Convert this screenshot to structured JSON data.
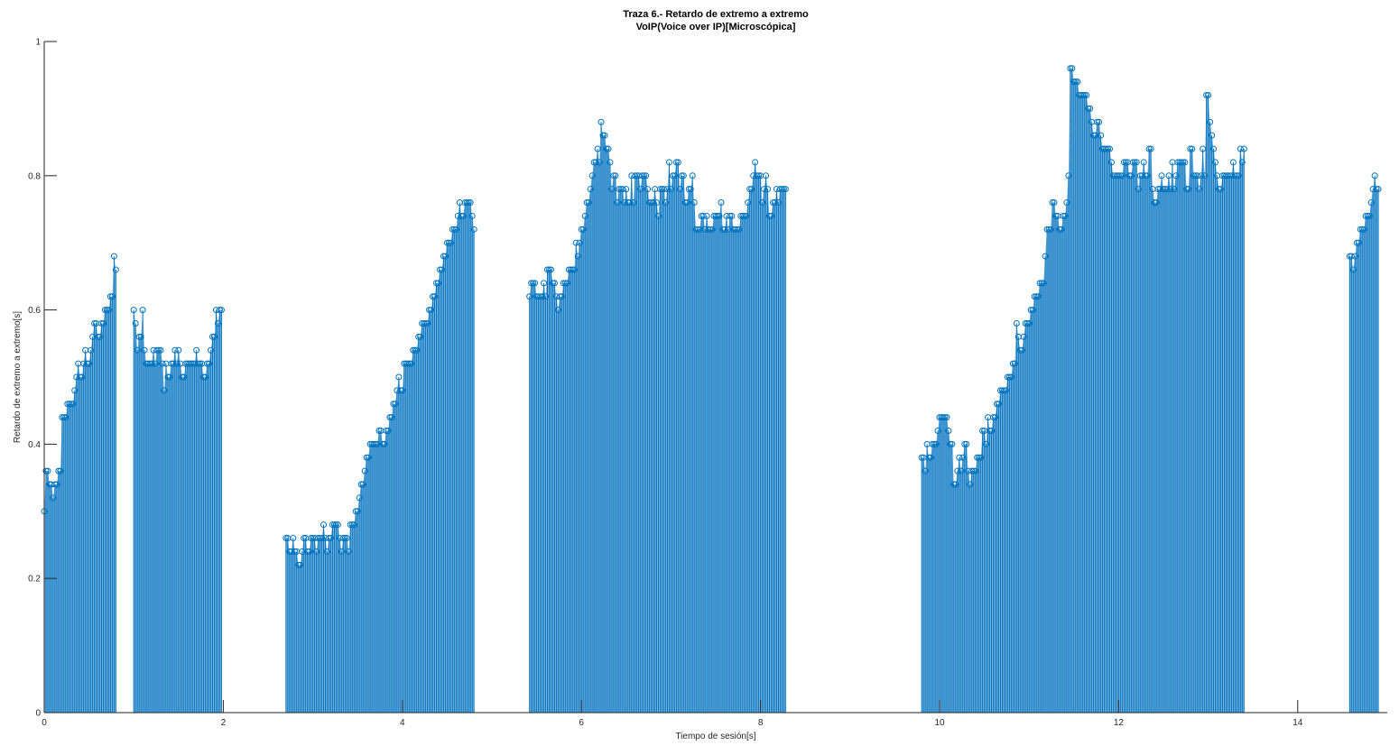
{
  "chart_data": {
    "type": "stem",
    "title": "Traza 6.- Retardo de extremo a extremo",
    "subtitle": "VoIP(Voice over IP)[Microscópica]",
    "xlabel": "Tiempo de sesión[s]",
    "ylabel": "Retardo de extremo a extremo[s]",
    "xlim": [
      0,
      15
    ],
    "ylim": [
      0,
      1
    ],
    "xticks": [
      0,
      2,
      4,
      6,
      8,
      10,
      12,
      14
    ],
    "yticks": [
      0,
      0.2,
      0.4,
      0.6,
      0.8,
      1
    ],
    "grid": false,
    "colors": {
      "stem": "#0072bd",
      "fill": "#7eb7e2"
    },
    "segments": [
      {
        "start": 0.0,
        "step": 0.02,
        "values": [
          0.3,
          0.36,
          0.36,
          0.34,
          0.34,
          0.32,
          0.34,
          0.34,
          0.36,
          0.36,
          0.44,
          0.44,
          0.44,
          0.46,
          0.46,
          0.46,
          0.46,
          0.48,
          0.5,
          0.52,
          0.5,
          0.5,
          0.52,
          0.54,
          0.52,
          0.52,
          0.54,
          0.56,
          0.58,
          0.58,
          0.56,
          0.56,
          0.58,
          0.58,
          0.6,
          0.6,
          0.6,
          0.62,
          0.62,
          0.68,
          0.66
        ]
      },
      {
        "start": 1.0,
        "step": 0.02,
        "values": [
          0.6,
          0.58,
          0.54,
          0.56,
          0.56,
          0.6,
          0.54,
          0.52,
          0.52,
          0.52,
          0.52,
          0.54,
          0.52,
          0.54,
          0.54,
          0.54,
          0.52,
          0.48,
          0.52,
          0.5,
          0.5,
          0.52,
          0.52,
          0.54,
          0.52,
          0.54,
          0.52,
          0.5,
          0.5,
          0.52,
          0.52,
          0.52,
          0.52,
          0.52,
          0.52,
          0.54,
          0.52,
          0.52,
          0.52,
          0.5,
          0.5,
          0.52,
          0.52,
          0.54,
          0.56,
          0.56,
          0.6,
          0.58,
          0.6,
          0.6
        ]
      },
      {
        "start": 2.7,
        "step": 0.02,
        "values": [
          0.26,
          0.26,
          0.24,
          0.24,
          0.26,
          0.24,
          0.24,
          0.22,
          0.22,
          0.24,
          0.26,
          0.26,
          0.24,
          0.24,
          0.26,
          0.26,
          0.26,
          0.24,
          0.26,
          0.26,
          0.26,
          0.28,
          0.26,
          0.24,
          0.26,
          0.26,
          0.28,
          0.28,
          0.28,
          0.28,
          0.26,
          0.24,
          0.26,
          0.26,
          0.26,
          0.24,
          0.28,
          0.28,
          0.28,
          0.3,
          0.3,
          0.32,
          0.34,
          0.34,
          0.36,
          0.38,
          0.38,
          0.4,
          0.4,
          0.4,
          0.4,
          0.4,
          0.42,
          0.42,
          0.4,
          0.4,
          0.42,
          0.42,
          0.44,
          0.44,
          0.46,
          0.46,
          0.48,
          0.5,
          0.48,
          0.48,
          0.52,
          0.52,
          0.52,
          0.52,
          0.52,
          0.54,
          0.54,
          0.54,
          0.56,
          0.56,
          0.58,
          0.58,
          0.58,
          0.58,
          0.6,
          0.6,
          0.62,
          0.62,
          0.64,
          0.64,
          0.66,
          0.66,
          0.68,
          0.68,
          0.7,
          0.7,
          0.7,
          0.72,
          0.72,
          0.72,
          0.74,
          0.76,
          0.74,
          0.74,
          0.76,
          0.76,
          0.76,
          0.76,
          0.74,
          0.72
        ]
      },
      {
        "start": 5.42,
        "step": 0.02,
        "values": [
          0.62,
          0.64,
          0.64,
          0.64,
          0.62,
          0.62,
          0.62,
          0.62,
          0.64,
          0.62,
          0.66,
          0.66,
          0.66,
          0.64,
          0.64,
          0.62,
          0.6,
          0.62,
          0.62,
          0.64,
          0.64,
          0.64,
          0.66,
          0.66,
          0.66,
          0.66,
          0.7,
          0.68,
          0.7,
          0.72,
          0.72,
          0.74,
          0.76,
          0.76,
          0.78,
          0.8,
          0.82,
          0.82,
          0.84,
          0.82,
          0.88,
          0.86,
          0.86,
          0.84,
          0.84,
          0.82,
          0.78,
          0.8,
          0.8,
          0.76,
          0.78,
          0.78,
          0.78,
          0.76,
          0.78,
          0.76,
          0.76,
          0.8,
          0.76,
          0.8,
          0.8,
          0.8,
          0.78,
          0.8,
          0.8,
          0.8,
          0.78,
          0.76,
          0.76,
          0.76,
          0.78,
          0.76,
          0.74,
          0.78,
          0.78,
          0.78,
          0.76,
          0.78,
          0.82,
          0.78,
          0.8,
          0.8,
          0.82,
          0.82,
          0.78,
          0.8,
          0.8,
          0.76,
          0.76,
          0.78,
          0.78,
          0.8,
          0.76,
          0.72,
          0.72,
          0.72,
          0.74,
          0.74,
          0.72,
          0.74,
          0.72,
          0.72,
          0.72,
          0.74,
          0.74,
          0.74,
          0.74,
          0.76,
          0.72,
          0.72,
          0.74,
          0.72,
          0.74,
          0.74,
          0.72,
          0.72,
          0.72,
          0.72,
          0.74,
          0.74,
          0.74,
          0.74,
          0.76,
          0.78,
          0.78,
          0.8,
          0.82,
          0.8,
          0.8,
          0.8,
          0.76,
          0.78,
          0.8,
          0.78,
          0.74,
          0.74,
          0.76,
          0.76,
          0.78,
          0.76,
          0.78,
          0.78,
          0.78,
          0.78
        ]
      },
      {
        "start": 9.8,
        "step": 0.02,
        "values": [
          0.38,
          0.38,
          0.36,
          0.4,
          0.38,
          0.38,
          0.4,
          0.4,
          0.4,
          0.42,
          0.44,
          0.44,
          0.44,
          0.44,
          0.44,
          0.42,
          0.4,
          0.4,
          0.34,
          0.34,
          0.36,
          0.38,
          0.36,
          0.38,
          0.4,
          0.4,
          0.36,
          0.34,
          0.36,
          0.36,
          0.36,
          0.38,
          0.38,
          0.38,
          0.42,
          0.42,
          0.4,
          0.44,
          0.42,
          0.42,
          0.44,
          0.44,
          0.46,
          0.46,
          0.48,
          0.48,
          0.48,
          0.48,
          0.5,
          0.5,
          0.5,
          0.52,
          0.52,
          0.58,
          0.56,
          0.54,
          0.54,
          0.56,
          0.58,
          0.58,
          0.58,
          0.6,
          0.6,
          0.62,
          0.62,
          0.62,
          0.64,
          0.64,
          0.64,
          0.68,
          0.72,
          0.72,
          0.72,
          0.76,
          0.76,
          0.74,
          0.74,
          0.72,
          0.72,
          0.74,
          0.74,
          0.76,
          0.8,
          0.96,
          0.96,
          0.94,
          0.94,
          0.94,
          0.92,
          0.92,
          0.92,
          0.92,
          0.92,
          0.9,
          0.9,
          0.88,
          0.86,
          0.86,
          0.88,
          0.88,
          0.86,
          0.84,
          0.84,
          0.84,
          0.84,
          0.84,
          0.82,
          0.8,
          0.8,
          0.8,
          0.8,
          0.8,
          0.8,
          0.82,
          0.82,
          0.82,
          0.8,
          0.8,
          0.82,
          0.82,
          0.82,
          0.78,
          0.8,
          0.8,
          0.82,
          0.8,
          0.8,
          0.84,
          0.84,
          0.78,
          0.76,
          0.76,
          0.78,
          0.78,
          0.8,
          0.78,
          0.78,
          0.78,
          0.8,
          0.78,
          0.82,
          0.78,
          0.8,
          0.82,
          0.82,
          0.82,
          0.82,
          0.82,
          0.78,
          0.78,
          0.84,
          0.84,
          0.8,
          0.8,
          0.8,
          0.78,
          0.8,
          0.84,
          0.8,
          0.92,
          0.92,
          0.88,
          0.86,
          0.84,
          0.82,
          0.8,
          0.78,
          0.78,
          0.8,
          0.8,
          0.8,
          0.8,
          0.8,
          0.8,
          0.82,
          0.8,
          0.8,
          0.8,
          0.84,
          0.82,
          0.84
        ]
      },
      {
        "start": 14.58,
        "step": 0.02,
        "values": [
          0.68,
          0.68,
          0.66,
          0.68,
          0.7,
          0.7,
          0.72,
          0.72,
          0.72,
          0.74,
          0.74,
          0.74,
          0.76,
          0.78,
          0.8,
          0.78,
          0.78
        ]
      }
    ]
  }
}
